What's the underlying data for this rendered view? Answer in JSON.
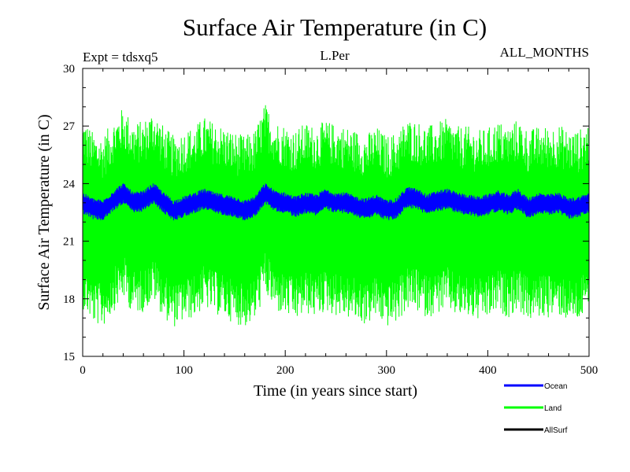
{
  "chart_data": {
    "type": "line",
    "title": "Surface Air Temperature (in C)",
    "experiment_label": "Expt = tdsxq5",
    "subtitle": "L.Per",
    "months_label": "ALL_MONTHS",
    "xlabel": "Time (in years since start)",
    "ylabel": "Surface Air Temperature (in C)",
    "xlim": [
      0,
      500
    ],
    "ylim": [
      15,
      30
    ],
    "xticks": [
      0,
      100,
      200,
      300,
      400,
      500
    ],
    "yticks": [
      15,
      18,
      21,
      24,
      27,
      30
    ],
    "legend_position": "bottom-right",
    "series": [
      {
        "name": "Ocean",
        "color": "#0000ff",
        "center_x": [
          0,
          10,
          20,
          30,
          40,
          50,
          60,
          70,
          80,
          90,
          100,
          110,
          120,
          130,
          140,
          150,
          160,
          170,
          180,
          190,
          200,
          210,
          220,
          230,
          240,
          250,
          260,
          270,
          280,
          290,
          300,
          310,
          320,
          330,
          340,
          350,
          360,
          370,
          380,
          390,
          400,
          410,
          420,
          430,
          440,
          450,
          460,
          470,
          480,
          490,
          500
        ],
        "center_y": [
          23.0,
          22.7,
          22.6,
          23.1,
          23.5,
          23.0,
          23.1,
          23.5,
          23.0,
          22.6,
          22.8,
          23.0,
          23.2,
          23.0,
          22.9,
          22.8,
          22.6,
          22.8,
          23.5,
          23.1,
          23.0,
          22.8,
          23.0,
          22.9,
          23.2,
          23.0,
          23.0,
          22.8,
          22.7,
          22.9,
          22.6,
          22.7,
          23.3,
          23.2,
          22.9,
          23.1,
          23.2,
          23.0,
          22.9,
          22.8,
          22.9,
          23.1,
          22.9,
          23.2,
          22.7,
          23.0,
          22.9,
          23.0,
          22.7,
          22.8,
          23.0
        ],
        "amplitude": 0.55
      },
      {
        "name": "Land",
        "color": "#00ff00",
        "center_x": [
          0,
          10,
          20,
          30,
          40,
          50,
          60,
          70,
          80,
          90,
          100,
          110,
          120,
          130,
          140,
          150,
          160,
          170,
          180,
          190,
          200,
          210,
          220,
          230,
          240,
          250,
          260,
          270,
          280,
          290,
          300,
          310,
          320,
          330,
          340,
          350,
          360,
          370,
          380,
          390,
          400,
          410,
          420,
          430,
          440,
          450,
          460,
          470,
          480,
          490,
          500
        ],
        "center_y": [
          22.5,
          21.7,
          21.5,
          22.3,
          23.0,
          22.2,
          22.3,
          22.9,
          22.0,
          21.5,
          21.8,
          22.0,
          22.5,
          22.2,
          22.0,
          21.7,
          21.5,
          21.8,
          23.2,
          22.3,
          22.1,
          21.8,
          22.2,
          22.0,
          22.3,
          22.1,
          22.0,
          21.8,
          21.6,
          22.0,
          21.5,
          21.7,
          22.4,
          22.3,
          22.0,
          22.2,
          22.4,
          22.0,
          22.0,
          21.8,
          21.9,
          22.3,
          22.0,
          22.4,
          21.8,
          22.0,
          22.0,
          22.1,
          21.8,
          21.8,
          22.3
        ],
        "amplitude": 5.0
      },
      {
        "name": "AllSurf",
        "color": "#000000",
        "center_x": [],
        "center_y": [],
        "amplitude": 0
      }
    ]
  }
}
